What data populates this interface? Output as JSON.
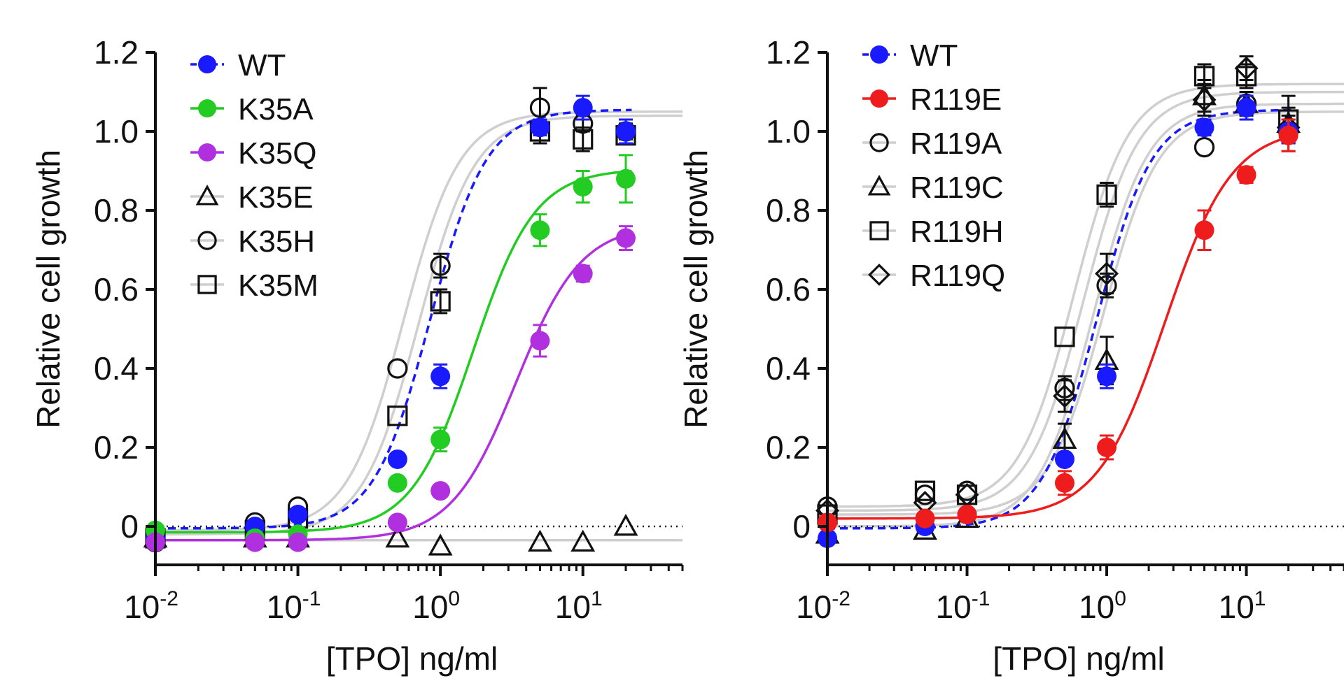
{
  "chart_data": [
    {
      "type": "scatter",
      "title": "",
      "xlabel": "[TPO] ng/ml",
      "ylabel": "Relative cell growth",
      "xscale": "log",
      "xlim": [
        0.01,
        50
      ],
      "ylim": [
        -0.1,
        1.2
      ],
      "yticks": [
        "0",
        "0.2",
        "0.4",
        "0.6",
        "0.8",
        "1.0",
        "1.2"
      ],
      "xticks": [
        {
          "base": "10",
          "exp": "-2"
        },
        {
          "base": "10",
          "exp": "-1"
        },
        {
          "base": "10",
          "exp": "0"
        },
        {
          "base": "10",
          "exp": "1"
        }
      ],
      "legend_position": "top-left",
      "series": [
        {
          "name": "WT",
          "color": "#1a1aff",
          "marker": "filled-circle",
          "curve": "dashed",
          "ec50": 0.85,
          "bottom": -0.005,
          "top": 1.055,
          "hill": 2.2,
          "x": [
            0.01,
            0.05,
            0.1,
            0.5,
            1,
            5,
            10,
            20
          ],
          "y": [
            -0.03,
            0.0,
            0.03,
            0.17,
            0.38,
            1.01,
            1.06,
            1.0
          ],
          "err": [
            0,
            0,
            0,
            0,
            0.03,
            0.02,
            0.03,
            0.03
          ]
        },
        {
          "name": "K35A",
          "color": "#22cc22",
          "marker": "filled-circle",
          "curve": "solid",
          "ec50": 1.7,
          "bottom": -0.015,
          "top": 0.905,
          "hill": 2.0,
          "x": [
            0.01,
            0.05,
            0.1,
            0.5,
            1,
            5,
            10,
            20
          ],
          "y": [
            -0.01,
            -0.03,
            -0.02,
            0.11,
            0.22,
            0.75,
            0.86,
            0.88
          ],
          "err": [
            0,
            0,
            0,
            0,
            0.03,
            0.04,
            0.04,
            0.06
          ]
        },
        {
          "name": "K35Q",
          "color": "#b030e0",
          "marker": "filled-circle",
          "curve": "solid",
          "ec50": 3.4,
          "bottom": -0.035,
          "top": 0.765,
          "hill": 1.9,
          "x": [
            0.01,
            0.05,
            0.1,
            0.5,
            1,
            5,
            10,
            20
          ],
          "y": [
            -0.04,
            -0.04,
            -0.04,
            0.01,
            0.09,
            0.47,
            0.64,
            0.73
          ],
          "err": [
            0,
            0,
            0,
            0,
            0,
            0.04,
            0.02,
            0.03
          ]
        },
        {
          "name": "K35E",
          "color": "#111111",
          "marker": "open-triangle",
          "curve": "grey",
          "x": [
            0.01,
            0.05,
            0.1,
            0.5,
            1,
            5,
            10,
            20
          ],
          "y": [
            -0.03,
            -0.03,
            -0.03,
            -0.03,
            -0.05,
            -0.04,
            -0.04,
            0.0
          ],
          "err": [
            0,
            0,
            0,
            0,
            0,
            0,
            0,
            0
          ]
        },
        {
          "name": "K35H",
          "color": "#111111",
          "marker": "open-circle",
          "curve": "grey",
          "x": [
            0.01,
            0.05,
            0.1,
            0.5,
            1,
            5,
            10,
            20
          ],
          "y": [
            -0.04,
            0.01,
            0.05,
            0.4,
            0.66,
            1.06,
            1.02,
            1.0
          ],
          "err": [
            0,
            0,
            0,
            0,
            0.03,
            0.05,
            0.02,
            0.02
          ]
        },
        {
          "name": "K35M",
          "color": "#111111",
          "marker": "open-square",
          "curve": "grey",
          "x": [
            0.01,
            0.05,
            0.1,
            0.5,
            1,
            5,
            10,
            20
          ],
          "y": [
            -0.03,
            -0.01,
            0.02,
            0.28,
            0.57,
            1.0,
            0.98,
            0.99
          ],
          "err": [
            0,
            0,
            0,
            0,
            0.03,
            0.03,
            0.03,
            0.02
          ]
        }
      ],
      "reference_curves": [
        {
          "ec50": 0.55,
          "bottom": -0.01,
          "top": 1.05,
          "hill": 2.2
        },
        {
          "ec50": 0.7,
          "bottom": -0.02,
          "top": 1.04,
          "hill": 2.2
        },
        {
          "ec50": 1,
          "bottom": -0.035,
          "top": -0.035,
          "hill": 1
        }
      ]
    },
    {
      "type": "scatter",
      "title": "",
      "xlabel": "[TPO] ng/ml",
      "ylabel": "Relative cell growth",
      "xscale": "log",
      "xlim": [
        0.01,
        50
      ],
      "ylim": [
        -0.1,
        1.2
      ],
      "yticks": [
        "0",
        "0.2",
        "0.4",
        "0.6",
        "0.8",
        "1.0",
        "1.2"
      ],
      "xticks": [
        {
          "base": "10",
          "exp": "-2"
        },
        {
          "base": "10",
          "exp": "-1"
        },
        {
          "base": "10",
          "exp": "0"
        },
        {
          "base": "10",
          "exp": "1"
        }
      ],
      "legend_position": "top-left",
      "series": [
        {
          "name": "WT",
          "color": "#1a1aff",
          "marker": "filled-circle",
          "curve": "dashed",
          "ec50": 0.85,
          "bottom": -0.005,
          "top": 1.055,
          "hill": 2.2,
          "x": [
            0.01,
            0.05,
            0.1,
            0.5,
            1,
            5,
            10,
            20
          ],
          "y": [
            -0.03,
            0.0,
            0.03,
            0.17,
            0.38,
            1.01,
            1.06,
            1.0
          ],
          "err": [
            0,
            0,
            0,
            0,
            0.03,
            0.02,
            0.03,
            0.03
          ]
        },
        {
          "name": "R119E",
          "color": "#ee1c1c",
          "marker": "filled-circle",
          "curve": "solid",
          "ec50": 2.6,
          "bottom": 0.02,
          "top": 1.01,
          "hill": 1.8,
          "x": [
            0.01,
            0.05,
            0.1,
            0.5,
            1,
            5,
            10,
            20
          ],
          "y": [
            0.01,
            0.02,
            0.03,
            0.11,
            0.2,
            0.75,
            0.89,
            0.99
          ],
          "err": [
            0,
            0,
            0,
            0.03,
            0.03,
            0.05,
            0.02,
            0.04
          ]
        },
        {
          "name": "R119A",
          "color": "#111111",
          "marker": "open-circle",
          "curve": "grey",
          "x": [
            0.01,
            0.05,
            0.1,
            0.5,
            1,
            5,
            10,
            20
          ],
          "y": [
            0.05,
            0.08,
            0.09,
            0.35,
            0.61,
            0.96,
            1.07,
            1.0
          ],
          "err": [
            0,
            0,
            0,
            0.03,
            0.03,
            0,
            0.02,
            0.03
          ]
        },
        {
          "name": "R119C",
          "color": "#111111",
          "marker": "open-triangle",
          "curve": "grey",
          "x": [
            0.01,
            0.05,
            0.1,
            0.5,
            1,
            5,
            10,
            20
          ],
          "y": [
            -0.02,
            -0.01,
            0.02,
            0.22,
            0.42,
            1.09,
            1.07,
            1.02
          ],
          "err": [
            0,
            0,
            0,
            0.04,
            0.06,
            0.04,
            0.03,
            0.07
          ]
        },
        {
          "name": "R119H",
          "color": "#111111",
          "marker": "open-square",
          "curve": "grey",
          "x": [
            0.01,
            0.05,
            0.1,
            0.5,
            1,
            5,
            10,
            20
          ],
          "y": [
            0.03,
            0.09,
            0.08,
            0.48,
            0.84,
            1.14,
            1.14,
            1.03
          ],
          "err": [
            0,
            0,
            0,
            0,
            0.03,
            0.03,
            0.03,
            0.03
          ]
        },
        {
          "name": "R119Q",
          "color": "#111111",
          "marker": "open-diamond",
          "curve": "grey",
          "x": [
            0.01,
            0.05,
            0.1,
            0.5,
            1,
            5,
            10,
            20
          ],
          "y": [
            0.04,
            0.06,
            0.08,
            0.33,
            0.64,
            1.08,
            1.16,
            1.01
          ],
          "err": [
            0,
            0,
            0,
            0.04,
            0.05,
            0.04,
            0.03,
            0.03
          ]
        }
      ],
      "reference_curves": [
        {
          "ec50": 0.58,
          "bottom": 0.05,
          "top": 1.12,
          "hill": 2.2
        },
        {
          "ec50": 0.68,
          "bottom": 0.04,
          "top": 1.1,
          "hill": 2.2
        },
        {
          "ec50": 0.8,
          "bottom": 0.0,
          "top": 1.07,
          "hill": 2.2
        },
        {
          "ec50": 0.95,
          "bottom": 0.03,
          "top": 1.05,
          "hill": 2.2
        }
      ]
    }
  ]
}
